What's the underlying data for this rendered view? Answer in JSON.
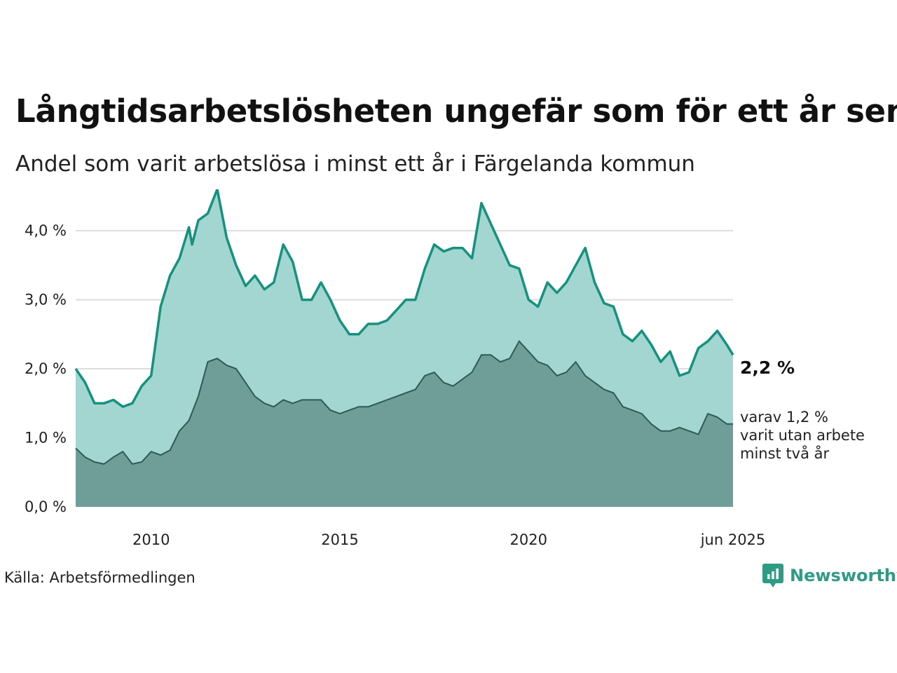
{
  "title": "Långtidsarbetslösheten ungefär som för ett år sen",
  "subtitle": "Andel som varit arbetslösa i minst ett år i Färgelanda kommun",
  "source": "Källa: Arbetsförmedlingen",
  "brand": {
    "name": "Newsworthy",
    "icon": "newsworthy-logo-icon"
  },
  "colors": {
    "line_main": "#16917f",
    "fill_main": "#a3d6d0",
    "line_sub": "#2f5a56",
    "fill_sub": "#6f9d98",
    "grid": "#dddddd",
    "brand": "#2e9b85"
  },
  "chart_data": {
    "type": "area",
    "title": "Långtidsarbetslösheten ungefär som för ett år sen",
    "subtitle": "Andel som varit arbetslösa i minst ett år i Färgelanda kommun",
    "x_range": [
      "2008-01",
      "2025-06"
    ],
    "x_ticks": [
      {
        "date": "2010-01",
        "label": "2010"
      },
      {
        "date": "2015-01",
        "label": "2015"
      },
      {
        "date": "2020-01",
        "label": "2020"
      },
      {
        "date": "2025-06",
        "label": "jun 2025"
      }
    ],
    "y_ticks": [
      {
        "value": 0,
        "label": "0,0 %"
      },
      {
        "value": 1,
        "label": "1,0 %"
      },
      {
        "value": 2,
        "label": "2,0 %"
      },
      {
        "value": 3,
        "label": "3,0 %"
      },
      {
        "value": 4,
        "label": "4,0 %"
      }
    ],
    "ylim": [
      0,
      4.6
    ],
    "grid": true,
    "end_label": "2,2 %",
    "end_note": [
      "varav 1,2 %",
      "varit utan arbete",
      "minst två år"
    ],
    "series": [
      {
        "unit": "%",
        "points": [
          [
            "2008-01",
            2.0
          ],
          [
            "2008-04",
            1.8
          ],
          [
            "2008-07",
            1.5
          ],
          [
            "2008-10",
            1.5
          ],
          [
            "2009-01",
            1.55
          ],
          [
            "2009-04",
            1.45
          ],
          [
            "2009-07",
            1.5
          ],
          [
            "2009-10",
            1.75
          ],
          [
            "2010-01",
            1.9
          ],
          [
            "2010-04",
            2.9
          ],
          [
            "2010-07",
            3.35
          ],
          [
            "2010-10",
            3.6
          ],
          [
            "2011-01",
            4.05
          ],
          [
            "2011-02",
            3.8
          ],
          [
            "2011-04",
            4.15
          ],
          [
            "2011-07",
            4.25
          ],
          [
            "2011-10",
            4.6
          ],
          [
            "2012-01",
            3.9
          ],
          [
            "2012-04",
            3.5
          ],
          [
            "2012-07",
            3.2
          ],
          [
            "2012-10",
            3.35
          ],
          [
            "2013-01",
            3.15
          ],
          [
            "2013-04",
            3.25
          ],
          [
            "2013-07",
            3.8
          ],
          [
            "2013-10",
            3.55
          ],
          [
            "2014-01",
            3.0
          ],
          [
            "2014-04",
            3.0
          ],
          [
            "2014-07",
            3.25
          ],
          [
            "2014-10",
            3.0
          ],
          [
            "2015-01",
            2.7
          ],
          [
            "2015-04",
            2.5
          ],
          [
            "2015-07",
            2.5
          ],
          [
            "2015-10",
            2.65
          ],
          [
            "2016-01",
            2.65
          ],
          [
            "2016-04",
            2.7
          ],
          [
            "2016-07",
            2.85
          ],
          [
            "2016-10",
            3.0
          ],
          [
            "2017-01",
            3.0
          ],
          [
            "2017-04",
            3.45
          ],
          [
            "2017-07",
            3.8
          ],
          [
            "2017-10",
            3.7
          ],
          [
            "2018-01",
            3.75
          ],
          [
            "2018-04",
            3.75
          ],
          [
            "2018-07",
            3.6
          ],
          [
            "2018-10",
            4.4
          ],
          [
            "2019-01",
            4.1
          ],
          [
            "2019-04",
            3.8
          ],
          [
            "2019-07",
            3.5
          ],
          [
            "2019-10",
            3.45
          ],
          [
            "2020-01",
            3.0
          ],
          [
            "2020-04",
            2.9
          ],
          [
            "2020-07",
            3.25
          ],
          [
            "2020-10",
            3.1
          ],
          [
            "2021-01",
            3.25
          ],
          [
            "2021-04",
            3.5
          ],
          [
            "2021-07",
            3.75
          ],
          [
            "2021-10",
            3.25
          ],
          [
            "2022-01",
            2.95
          ],
          [
            "2022-04",
            2.9
          ],
          [
            "2022-07",
            2.5
          ],
          [
            "2022-10",
            2.4
          ],
          [
            "2023-01",
            2.55
          ],
          [
            "2023-04",
            2.35
          ],
          [
            "2023-07",
            2.1
          ],
          [
            "2023-10",
            2.25
          ],
          [
            "2024-01",
            1.9
          ],
          [
            "2024-04",
            1.95
          ],
          [
            "2024-07",
            2.3
          ],
          [
            "2024-10",
            2.4
          ],
          [
            "2025-01",
            2.55
          ],
          [
            "2025-04",
            2.35
          ],
          [
            "2025-06",
            2.2
          ]
        ]
      },
      {
        "unit": "%",
        "points": [
          [
            "2008-01",
            0.85
          ],
          [
            "2008-04",
            0.72
          ],
          [
            "2008-07",
            0.65
          ],
          [
            "2008-10",
            0.62
          ],
          [
            "2009-01",
            0.72
          ],
          [
            "2009-04",
            0.8
          ],
          [
            "2009-07",
            0.62
          ],
          [
            "2009-10",
            0.65
          ],
          [
            "2010-01",
            0.8
          ],
          [
            "2010-04",
            0.75
          ],
          [
            "2010-07",
            0.82
          ],
          [
            "2010-10",
            1.1
          ],
          [
            "2011-01",
            1.25
          ],
          [
            "2011-04",
            1.6
          ],
          [
            "2011-07",
            2.1
          ],
          [
            "2011-10",
            2.15
          ],
          [
            "2012-01",
            2.05
          ],
          [
            "2012-04",
            2.0
          ],
          [
            "2012-07",
            1.8
          ],
          [
            "2012-10",
            1.6
          ],
          [
            "2013-01",
            1.5
          ],
          [
            "2013-04",
            1.45
          ],
          [
            "2013-07",
            1.55
          ],
          [
            "2013-10",
            1.5
          ],
          [
            "2014-01",
            1.55
          ],
          [
            "2014-04",
            1.55
          ],
          [
            "2014-07",
            1.55
          ],
          [
            "2014-10",
            1.4
          ],
          [
            "2015-01",
            1.35
          ],
          [
            "2015-04",
            1.4
          ],
          [
            "2015-07",
            1.45
          ],
          [
            "2015-10",
            1.45
          ],
          [
            "2016-01",
            1.5
          ],
          [
            "2016-04",
            1.55
          ],
          [
            "2016-07",
            1.6
          ],
          [
            "2016-10",
            1.65
          ],
          [
            "2017-01",
            1.7
          ],
          [
            "2017-04",
            1.9
          ],
          [
            "2017-07",
            1.95
          ],
          [
            "2017-10",
            1.8
          ],
          [
            "2018-01",
            1.75
          ],
          [
            "2018-04",
            1.85
          ],
          [
            "2018-07",
            1.95
          ],
          [
            "2018-10",
            2.2
          ],
          [
            "2019-01",
            2.2
          ],
          [
            "2019-04",
            2.1
          ],
          [
            "2019-07",
            2.15
          ],
          [
            "2019-10",
            2.4
          ],
          [
            "2020-01",
            2.25
          ],
          [
            "2020-04",
            2.1
          ],
          [
            "2020-07",
            2.05
          ],
          [
            "2020-10",
            1.9
          ],
          [
            "2021-01",
            1.95
          ],
          [
            "2021-04",
            2.1
          ],
          [
            "2021-07",
            1.9
          ],
          [
            "2021-10",
            1.8
          ],
          [
            "2022-01",
            1.7
          ],
          [
            "2022-04",
            1.65
          ],
          [
            "2022-07",
            1.45
          ],
          [
            "2022-10",
            1.4
          ],
          [
            "2023-01",
            1.35
          ],
          [
            "2023-04",
            1.2
          ],
          [
            "2023-07",
            1.1
          ],
          [
            "2023-10",
            1.1
          ],
          [
            "2024-01",
            1.15
          ],
          [
            "2024-04",
            1.1
          ],
          [
            "2024-07",
            1.05
          ],
          [
            "2024-10",
            1.35
          ],
          [
            "2025-01",
            1.3
          ],
          [
            "2025-04",
            1.2
          ],
          [
            "2025-06",
            1.2
          ]
        ]
      }
    ]
  }
}
